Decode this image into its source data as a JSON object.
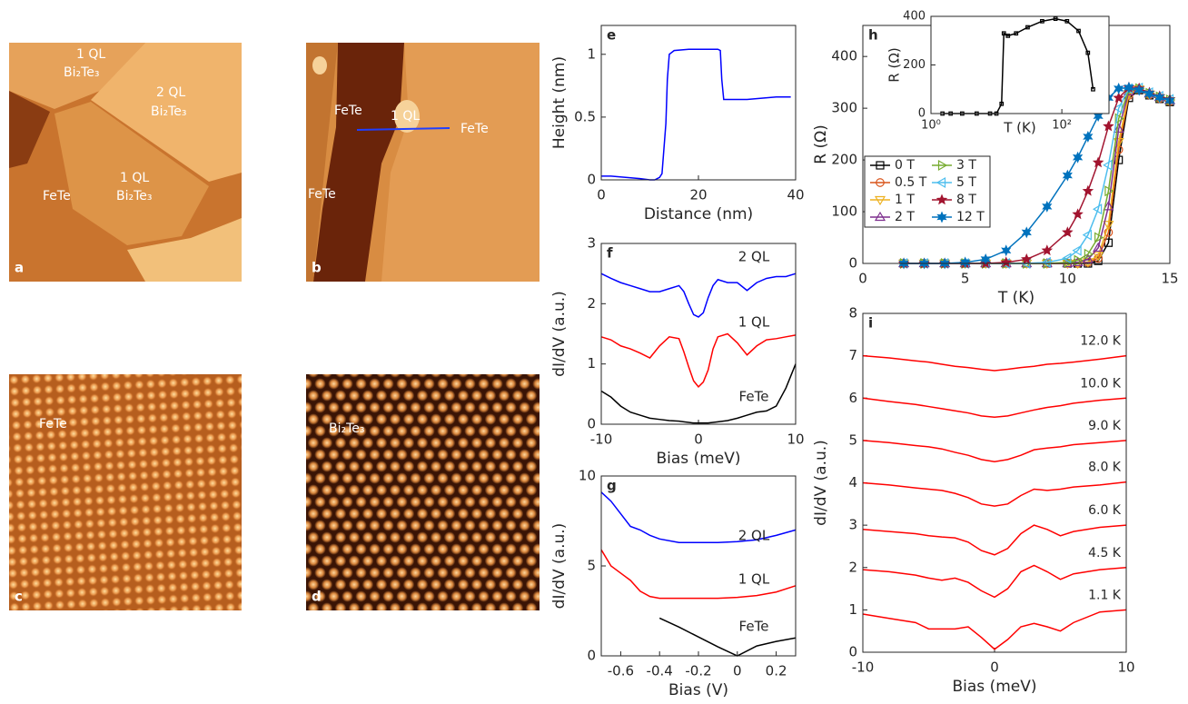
{
  "images": [
    {
      "letter": "a",
      "labels": [
        "1 QL",
        "Bi₂Te₃",
        "2 QL",
        "Bi₂Te₃",
        "1 QL",
        "Bi₂Te₃",
        "FeTe"
      ]
    },
    {
      "letter": "b",
      "labels": [
        "FeTe",
        "1 QL",
        "FeTe",
        "FeTe"
      ]
    },
    {
      "letter": "c",
      "labels": [
        "FeTe"
      ]
    },
    {
      "letter": "d",
      "labels": [
        "Bi₂Te₃"
      ]
    }
  ],
  "chart_data": [
    {
      "type": "line",
      "panel": "e",
      "xlabel": "Distance (nm)",
      "ylabel": "Height (nm)",
      "xlim": [
        0,
        40
      ],
      "ylim": [
        0,
        1.23
      ],
      "xticks": [
        0,
        20,
        40
      ],
      "yticks": [
        0,
        0.5,
        1
      ],
      "x": [
        0,
        2,
        5,
        8,
        10,
        11,
        12,
        12.5,
        13,
        13.3,
        13.6,
        14,
        15,
        18,
        20,
        22,
        24,
        24.5,
        24.8,
        25.2,
        27,
        30,
        33,
        36,
        39
      ],
      "series": [
        {
          "color": "#0000ff",
          "values": [
            0.03,
            0.03,
            0.02,
            0.01,
            0.0,
            0.0,
            0.02,
            0.05,
            0.3,
            0.45,
            0.8,
            1.0,
            1.03,
            1.04,
            1.04,
            1.04,
            1.04,
            1.03,
            0.8,
            0.64,
            0.64,
            0.64,
            0.65,
            0.66,
            0.66
          ]
        }
      ]
    },
    {
      "type": "line",
      "panel": "f",
      "xlabel": "Bias (meV)",
      "ylabel": "dI/dV (a.u.)",
      "xlim": [
        -10,
        10
      ],
      "ylim": [
        0,
        3
      ],
      "xticks": [
        -10,
        0,
        10
      ],
      "yticks": [
        0,
        1,
        2,
        3
      ],
      "x": [
        -10,
        -9,
        -8,
        -7,
        -6,
        -5,
        -4,
        -3,
        -2,
        -1.5,
        -1,
        -0.5,
        0,
        0.5,
        1,
        1.5,
        2,
        3,
        4,
        5,
        6,
        7,
        8,
        9,
        10
      ],
      "series": [
        {
          "name": "2 QL",
          "color": "#0000ff",
          "values": [
            2.5,
            2.42,
            2.35,
            2.3,
            2.25,
            2.2,
            2.2,
            2.25,
            2.3,
            2.2,
            2.0,
            1.82,
            1.78,
            1.85,
            2.1,
            2.3,
            2.4,
            2.35,
            2.35,
            2.22,
            2.35,
            2.42,
            2.45,
            2.45,
            2.5
          ]
        },
        {
          "name": "1 QL",
          "color": "#ff0000",
          "values": [
            1.45,
            1.4,
            1.3,
            1.25,
            1.18,
            1.1,
            1.3,
            1.45,
            1.42,
            1.2,
            0.95,
            0.72,
            0.62,
            0.7,
            0.9,
            1.25,
            1.45,
            1.5,
            1.35,
            1.15,
            1.3,
            1.4,
            1.42,
            1.45,
            1.48
          ]
        },
        {
          "name": "FeTe",
          "color": "#000000",
          "values": [
            0.55,
            0.45,
            0.3,
            0.2,
            0.15,
            0.1,
            0.08,
            0.06,
            0.05,
            0.04,
            0.03,
            0.02,
            0.02,
            0.02,
            0.02,
            0.03,
            0.04,
            0.06,
            0.1,
            0.15,
            0.2,
            0.22,
            0.3,
            0.6,
            1.0
          ]
        }
      ]
    },
    {
      "type": "line",
      "panel": "g",
      "xlabel": "Bias (V)",
      "ylabel": "dI/dV (a.u.)",
      "xlim": [
        -0.7,
        0.3
      ],
      "ylim": [
        0,
        10
      ],
      "xticks": [
        -0.6,
        -0.4,
        -0.2,
        0,
        0.2
      ],
      "yticks": [
        0,
        5,
        10
      ],
      "x": [
        -0.7,
        -0.65,
        -0.6,
        -0.55,
        -0.5,
        -0.45,
        -0.4,
        -0.3,
        -0.2,
        -0.1,
        0,
        0.1,
        0.2,
        0.3
      ],
      "series": [
        {
          "name": "2 QL",
          "color": "#0000ff",
          "values": [
            9.1,
            8.6,
            7.9,
            7.2,
            7.0,
            6.7,
            6.5,
            6.3,
            6.3,
            6.3,
            6.35,
            6.45,
            6.7,
            7.0
          ]
        },
        {
          "name": "1 QL",
          "color": "#ff0000",
          "values": [
            5.9,
            5.0,
            4.6,
            4.2,
            3.6,
            3.3,
            3.2,
            3.2,
            3.2,
            3.2,
            3.25,
            3.35,
            3.55,
            3.9
          ]
        },
        {
          "name": "FeTe",
          "color": "#000000",
          "x": [
            -0.4,
            -0.3,
            -0.2,
            -0.1,
            0,
            0.1,
            0.2,
            0.3
          ],
          "values": [
            2.1,
            1.6,
            1.05,
            0.5,
            0.0,
            0.55,
            0.8,
            1.0
          ]
        }
      ]
    },
    {
      "type": "line",
      "panel": "h",
      "xlabel": "T (K)",
      "ylabel": "R (Ω)",
      "xlim": [
        0,
        15
      ],
      "ylim": [
        0,
        460
      ],
      "xticks": [
        0,
        5,
        10,
        15
      ],
      "yticks": [
        0,
        100,
        200,
        300,
        400
      ],
      "x": [
        2,
        3,
        4,
        5,
        6,
        7,
        8,
        9,
        10,
        10.5,
        11,
        11.5,
        12,
        12.5,
        13,
        13.5,
        14,
        14.5,
        15
      ],
      "series": [
        {
          "name": "0 T",
          "color": "#000000",
          "marker": "square",
          "values": [
            0,
            0,
            0,
            0,
            0,
            0,
            0,
            0,
            0,
            0,
            0,
            5,
            40,
            200,
            320,
            335,
            325,
            318,
            312
          ]
        },
        {
          "name": "0.5 T",
          "color": "#d95319",
          "marker": "circle",
          "values": [
            0,
            0,
            0,
            0,
            0,
            0,
            0,
            0,
            0,
            0,
            2,
            10,
            60,
            220,
            325,
            336,
            326,
            319,
            313
          ]
        },
        {
          "name": "1 T",
          "color": "#edb120",
          "marker": "triangle-down",
          "values": [
            0,
            0,
            0,
            0,
            0,
            0,
            0,
            0,
            0,
            0,
            3,
            15,
            75,
            235,
            328,
            337,
            327,
            320,
            314
          ]
        },
        {
          "name": "2 T",
          "color": "#7e2f8e",
          "marker": "triangle-up",
          "values": [
            0,
            0,
            0,
            0,
            0,
            0,
            0,
            0,
            0,
            2,
            8,
            30,
            110,
            260,
            332,
            338,
            328,
            321,
            315
          ]
        },
        {
          "name": "3 T",
          "color": "#77ac30",
          "marker": "triangle-right",
          "values": [
            0,
            0,
            0,
            0,
            0,
            0,
            0,
            0,
            2,
            6,
            18,
            50,
            140,
            280,
            335,
            338,
            329,
            322,
            316
          ]
        },
        {
          "name": "5 T",
          "color": "#4dbeee",
          "marker": "triangle-left",
          "values": [
            0,
            0,
            0,
            0,
            0,
            0,
            0,
            2,
            10,
            25,
            55,
            105,
            190,
            300,
            338,
            339,
            330,
            323,
            317
          ]
        },
        {
          "name": "8 T",
          "color": "#a2142f",
          "marker": "star5",
          "values": [
            0,
            0,
            0,
            0,
            0,
            2,
            8,
            25,
            60,
            95,
            140,
            195,
            265,
            320,
            340,
            338,
            330,
            323,
            317
          ]
        },
        {
          "name": "12 T",
          "color": "#0072bd",
          "marker": "star6",
          "values": [
            0,
            0,
            0,
            2,
            8,
            25,
            60,
            110,
            170,
            205,
            245,
            285,
            320,
            338,
            340,
            335,
            328,
            321,
            315
          ]
        }
      ]
    },
    {
      "type": "line",
      "xlabel": "T (K)",
      "ylabel": "R (Ω)",
      "xscale": "log",
      "xlim": [
        1,
        525
      ],
      "ylim": [
        0,
        400
      ],
      "xticks": [
        {
          "value": 1,
          "label": "10⁰"
        },
        {
          "value": 100,
          "label": "10²"
        }
      ],
      "yticks": [
        0,
        200,
        400
      ],
      "x": [
        1.5,
        2,
        3,
        5,
        8,
        10,
        12,
        13,
        15,
        20,
        30,
        50,
        80,
        120,
        180,
        250,
        300
      ],
      "series": [
        {
          "color": "#000000",
          "marker": "square",
          "values": [
            0,
            0,
            0,
            0,
            0,
            0,
            40,
            330,
            320,
            330,
            355,
            380,
            390,
            380,
            340,
            250,
            100
          ]
        }
      ]
    },
    {
      "type": "line",
      "panel": "i",
      "xlabel": "Bias (meV)",
      "ylabel": "dI/dV (a.u.)",
      "xlim": [
        -10,
        10
      ],
      "ylim": [
        0,
        8
      ],
      "xticks": [
        -10,
        0,
        10
      ],
      "yticks": [
        0,
        1,
        2,
        3,
        4,
        5,
        6,
        7,
        8
      ],
      "x": [
        -10,
        -8,
        -6,
        -5,
        -4,
        -3,
        -2,
        -1,
        0,
        1,
        2,
        3,
        4,
        5,
        6,
        8,
        10
      ],
      "series": [
        {
          "name": "12.0 K",
          "color": "#ff0000",
          "values": [
            7.0,
            6.95,
            6.88,
            6.85,
            6.8,
            6.75,
            6.72,
            6.68,
            6.65,
            6.68,
            6.72,
            6.75,
            6.8,
            6.82,
            6.85,
            6.92,
            7.0
          ]
        },
        {
          "name": "10.0 K",
          "color": "#ff0000",
          "values": [
            6.0,
            5.92,
            5.85,
            5.8,
            5.75,
            5.7,
            5.65,
            5.58,
            5.55,
            5.58,
            5.65,
            5.72,
            5.78,
            5.82,
            5.88,
            5.95,
            6.0
          ]
        },
        {
          "name": "9.0 K",
          "color": "#ff0000",
          "values": [
            5.0,
            4.95,
            4.88,
            4.85,
            4.8,
            4.72,
            4.65,
            4.55,
            4.5,
            4.55,
            4.65,
            4.78,
            4.82,
            4.85,
            4.9,
            4.95,
            5.0
          ]
        },
        {
          "name": "8.0 K",
          "color": "#ff0000",
          "values": [
            4.0,
            3.95,
            3.88,
            3.85,
            3.82,
            3.75,
            3.65,
            3.5,
            3.45,
            3.5,
            3.7,
            3.85,
            3.82,
            3.85,
            3.9,
            3.95,
            4.02
          ]
        },
        {
          "name": "6.0 K",
          "color": "#ff0000",
          "values": [
            2.9,
            2.85,
            2.8,
            2.75,
            2.72,
            2.7,
            2.6,
            2.4,
            2.3,
            2.45,
            2.8,
            3.0,
            2.9,
            2.75,
            2.85,
            2.95,
            3.0
          ]
        },
        {
          "name": "4.5 K",
          "color": "#ff0000",
          "values": [
            1.95,
            1.9,
            1.82,
            1.75,
            1.7,
            1.75,
            1.65,
            1.45,
            1.3,
            1.5,
            1.9,
            2.05,
            1.9,
            1.72,
            1.85,
            1.95,
            2.0
          ]
        },
        {
          "name": "1.1 K",
          "color": "#ff0000",
          "values": [
            0.9,
            0.8,
            0.7,
            0.55,
            0.55,
            0.55,
            0.6,
            0.35,
            0.07,
            0.3,
            0.6,
            0.68,
            0.6,
            0.5,
            0.7,
            0.95,
            1.0
          ]
        }
      ]
    }
  ]
}
